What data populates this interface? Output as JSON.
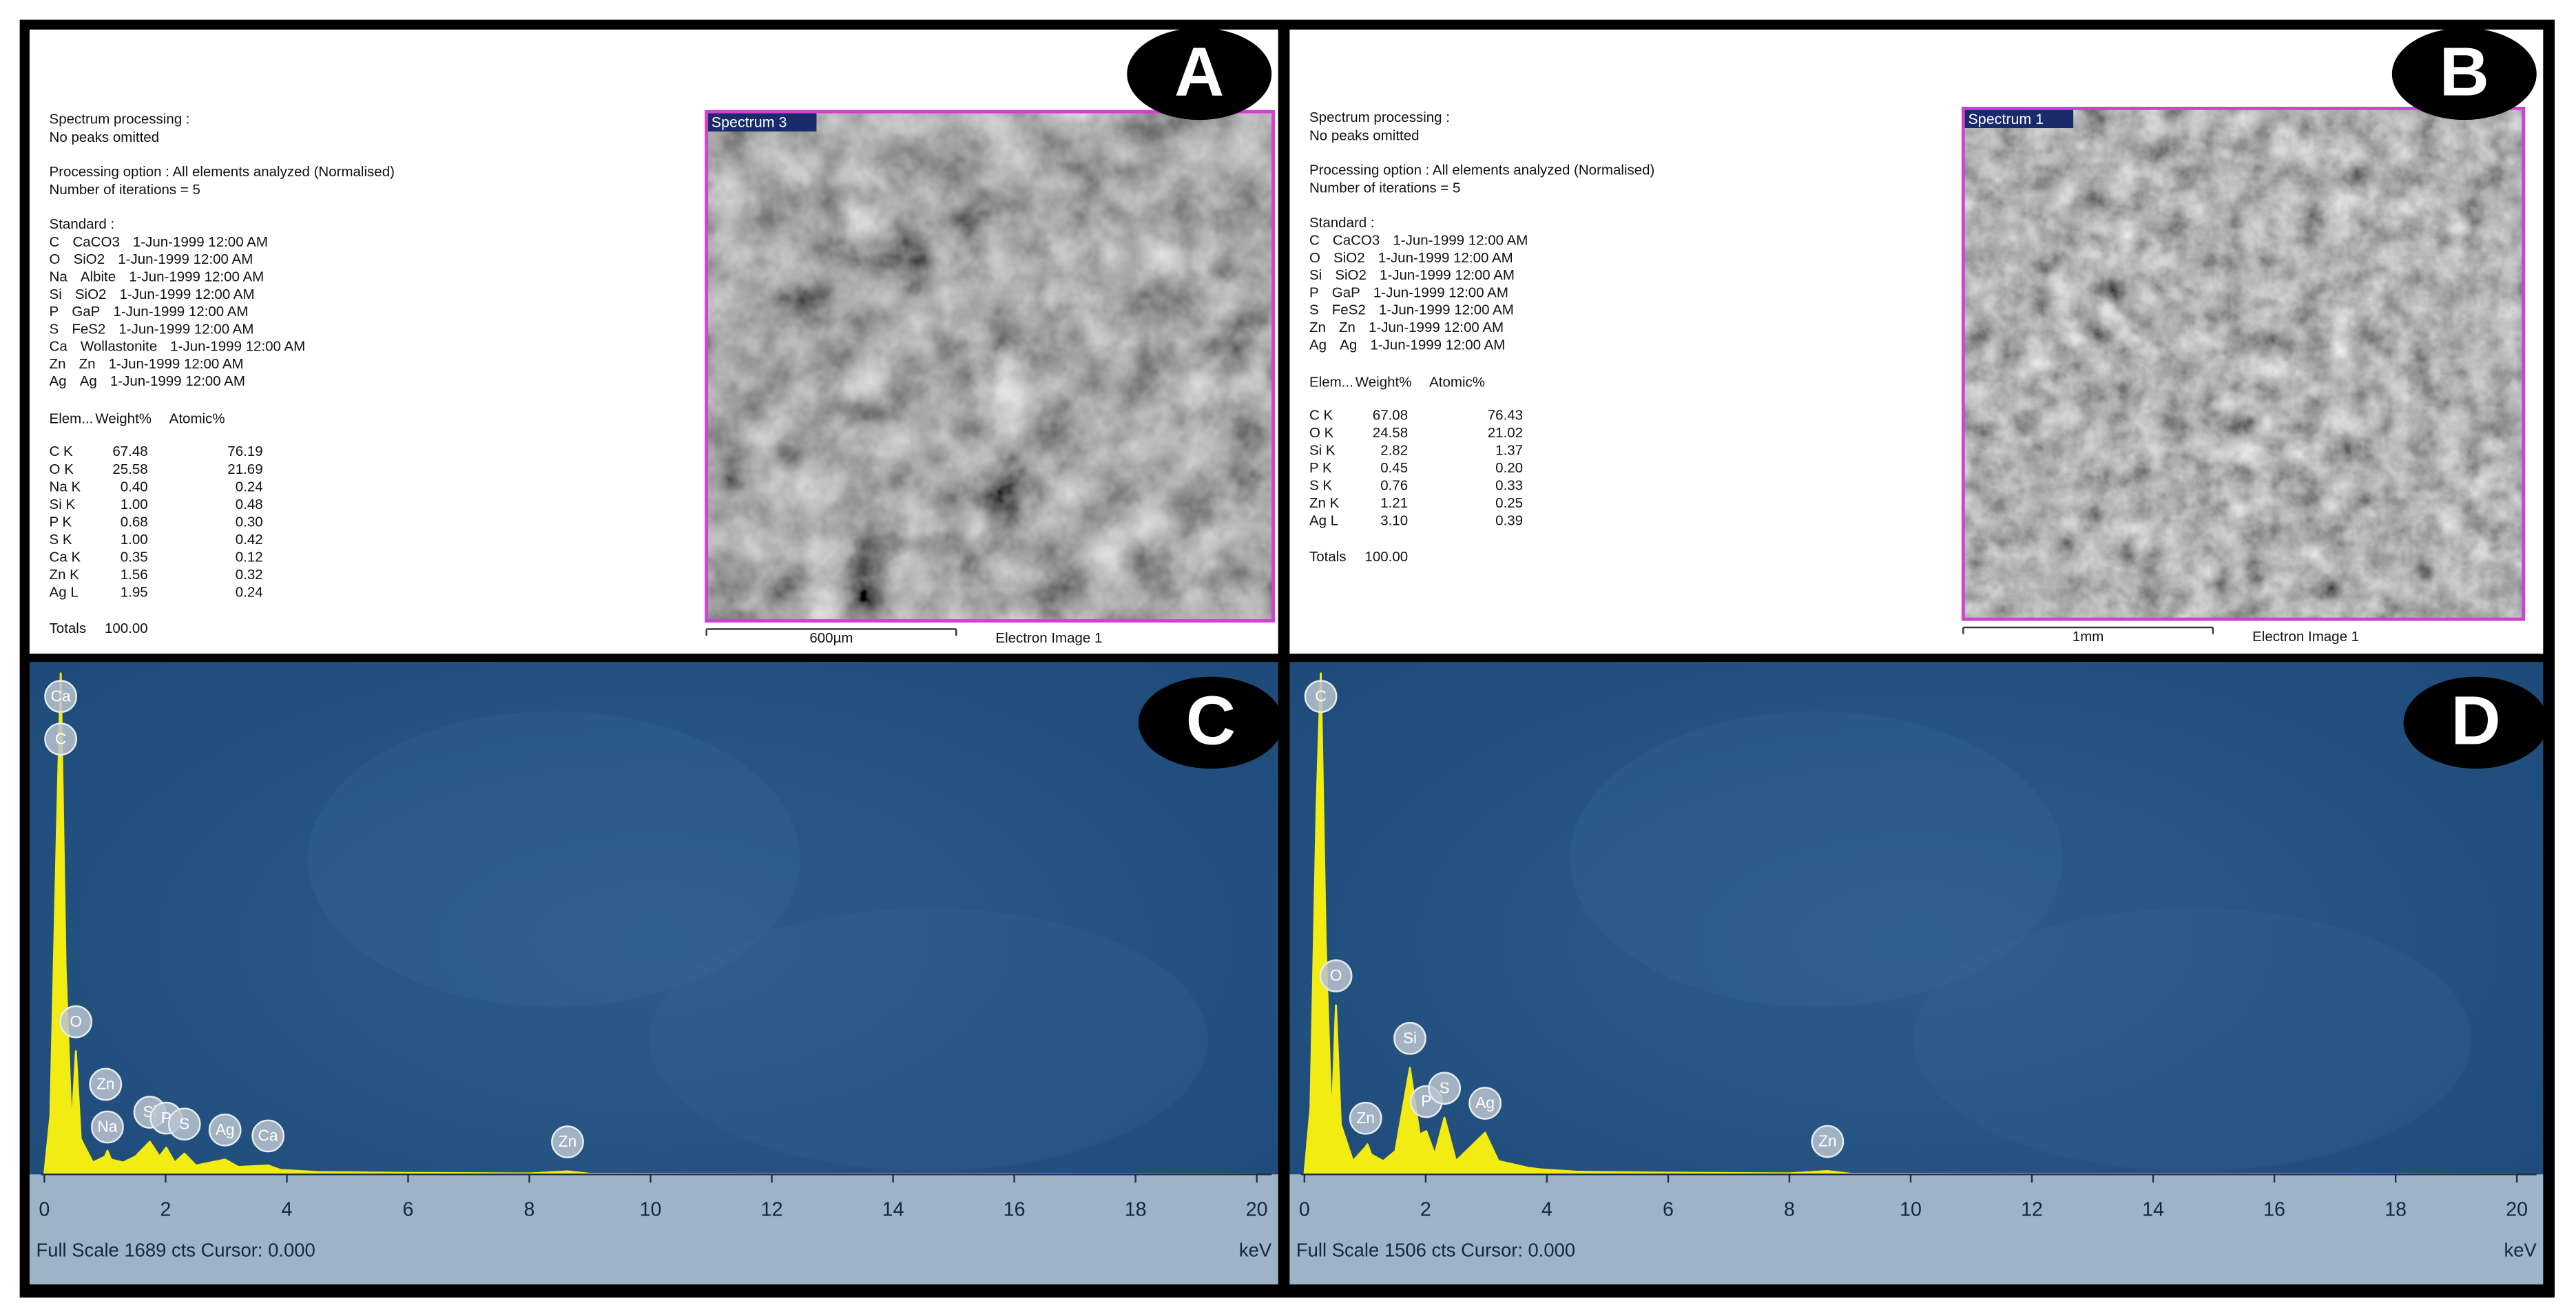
{
  "panels": [
    {
      "letter": "A",
      "processing": [
        "Spectrum processing :",
        "No peaks omitted",
        "Processing option : All elements analyzed (Normalised)",
        "Number of iterations = 5"
      ],
      "standard_title": "Standard :",
      "standards": [
        [
          "C",
          "CaCO3",
          "1-Jun-1999 12:00 AM"
        ],
        [
          "O",
          "SiO2",
          "1-Jun-1999 12:00 AM"
        ],
        [
          "Na",
          "Albite",
          "1-Jun-1999 12:00 AM"
        ],
        [
          "Si",
          "SiO2",
          "1-Jun-1999 12:00 AM"
        ],
        [
          "P",
          "GaP",
          "1-Jun-1999 12:00 AM"
        ],
        [
          "S",
          "FeS2",
          "1-Jun-1999 12:00 AM"
        ],
        [
          "Ca",
          "Wollastonite",
          "1-Jun-1999 12:00 AM"
        ],
        [
          "Zn",
          "Zn",
          "1-Jun-1999 12:00 AM"
        ],
        [
          "Ag",
          "Ag",
          "1-Jun-1999 12:00 AM"
        ]
      ],
      "table": {
        "header": [
          "Elem...",
          "Weight%",
          "Atomic%"
        ],
        "rows": [
          [
            "C K",
            "67.48",
            "76.19"
          ],
          [
            "O K",
            "25.58",
            "21.69"
          ],
          [
            "Na K",
            "0.40",
            "0.24"
          ],
          [
            "Si K",
            "1.00",
            "0.48"
          ],
          [
            "P K",
            "0.68",
            "0.30"
          ],
          [
            "S K",
            "1.00",
            "0.42"
          ],
          [
            "Ca K",
            "0.35",
            "0.12"
          ],
          [
            "Zn K",
            "1.56",
            "0.32"
          ],
          [
            "Ag L",
            "1.95",
            "0.24"
          ]
        ],
        "totals": [
          "Totals",
          "100.00"
        ]
      },
      "image": {
        "label": "Spectrum 3",
        "scale": "600µm",
        "caption": "Electron Image 1"
      }
    },
    {
      "letter": "B",
      "processing": [
        "Spectrum processing :",
        "No peaks omitted",
        "Processing option : All elements analyzed (Normalised)",
        "Number of iterations = 5"
      ],
      "standard_title": "Standard :",
      "standards": [
        [
          "C",
          "CaCO3",
          "1-Jun-1999 12:00 AM"
        ],
        [
          "O",
          "SiO2",
          "1-Jun-1999 12:00 AM"
        ],
        [
          "Si",
          "SiO2",
          "1-Jun-1999 12:00 AM"
        ],
        [
          "P",
          "GaP",
          "1-Jun-1999 12:00 AM"
        ],
        [
          "S",
          "FeS2",
          "1-Jun-1999 12:00 AM"
        ],
        [
          "Zn",
          "Zn",
          "1-Jun-1999 12:00 AM"
        ],
        [
          "Ag",
          "Ag",
          "1-Jun-1999 12:00 AM"
        ]
      ],
      "table": {
        "header": [
          "Elem...",
          "Weight%",
          "Atomic%"
        ],
        "rows": [
          [
            "C K",
            "67.08",
            "76.43"
          ],
          [
            "O K",
            "24.58",
            "21.02"
          ],
          [
            "Si K",
            "2.82",
            "1.37"
          ],
          [
            "P K",
            "0.45",
            "0.20"
          ],
          [
            "S K",
            "0.76",
            "0.33"
          ],
          [
            "Zn K",
            "1.21",
            "0.25"
          ],
          [
            "Ag L",
            "3.10",
            "0.39"
          ]
        ],
        "totals": [
          "Totals",
          "100.00"
        ]
      },
      "image": {
        "label": "Spectrum 1",
        "scale": "1mm",
        "caption": "Electron Image 1"
      }
    }
  ],
  "chart_data": [
    {
      "type": "line",
      "letter": "C",
      "color": "#f2ec12",
      "footer": "Full Scale 1689 cts Cursor: 0.000",
      "x_unit": "keV",
      "xlim": [
        0,
        20.3
      ],
      "ylim": [
        0,
        1689
      ],
      "xticks": [
        0,
        2,
        4,
        6,
        8,
        10,
        12,
        14,
        16,
        18,
        20
      ],
      "x": [
        0,
        0.1,
        0.2,
        0.27,
        0.35,
        0.45,
        0.52,
        0.6,
        0.8,
        1.0,
        1.04,
        1.1,
        1.3,
        1.5,
        1.74,
        1.9,
        2.01,
        2.15,
        2.31,
        2.5,
        2.98,
        3.2,
        3.69,
        3.9,
        4.5,
        6,
        8,
        8.63,
        9,
        12,
        16,
        20
      ],
      "values": [
        0,
        200,
        1100,
        1689,
        700,
        150,
        415,
        120,
        40,
        60,
        80,
        50,
        40,
        60,
        110,
        60,
        90,
        40,
        70,
        30,
        50,
        25,
        30,
        15,
        8,
        5,
        3,
        10,
        2,
        1,
        1,
        0
      ],
      "peaks": [
        {
          "label": "Ca",
          "x": 0.27
        },
        {
          "label": "C",
          "x": 0.27
        },
        {
          "label": "O",
          "x": 0.52
        },
        {
          "label": "Zn",
          "x": 1.01
        },
        {
          "label": "Na",
          "x": 1.04
        },
        {
          "label": "Si",
          "x": 1.74
        },
        {
          "label": "P",
          "x": 2.01
        },
        {
          "label": "S",
          "x": 2.31
        },
        {
          "label": "Ag",
          "x": 2.98
        },
        {
          "label": "Ca",
          "x": 3.69
        },
        {
          "label": "Zn",
          "x": 8.63
        }
      ]
    },
    {
      "type": "line",
      "letter": "D",
      "color": "#f2ec12",
      "footer": "Full Scale 1506 cts Cursor: 0.000",
      "x_unit": "keV",
      "xlim": [
        0,
        20.3
      ],
      "ylim": [
        0,
        1506
      ],
      "xticks": [
        0,
        2,
        4,
        6,
        8,
        10,
        12,
        14,
        16,
        18,
        20
      ],
      "x": [
        0,
        0.1,
        0.2,
        0.27,
        0.35,
        0.45,
        0.52,
        0.6,
        0.8,
        1.0,
        1.04,
        1.1,
        1.3,
        1.5,
        1.74,
        1.9,
        2.01,
        2.15,
        2.31,
        2.5,
        2.98,
        3.2,
        3.69,
        3.9,
        4.5,
        6,
        8,
        8.63,
        9,
        12,
        16,
        20
      ],
      "values": [
        0,
        200,
        1100,
        1506,
        700,
        150,
        508,
        150,
        40,
        80,
        90,
        60,
        40,
        70,
        320,
        120,
        130,
        60,
        170,
        40,
        125,
        40,
        20,
        15,
        8,
        5,
        3,
        10,
        2,
        1,
        1,
        0
      ],
      "peaks": [
        {
          "label": "C",
          "x": 0.27
        },
        {
          "label": "O",
          "x": 0.52
        },
        {
          "label": "Zn",
          "x": 1.01
        },
        {
          "label": "Si",
          "x": 1.74
        },
        {
          "label": "P",
          "x": 2.01
        },
        {
          "label": "S",
          "x": 2.31
        },
        {
          "label": "Ag",
          "x": 2.98
        },
        {
          "label": "Zn",
          "x": 8.63
        }
      ]
    }
  ]
}
